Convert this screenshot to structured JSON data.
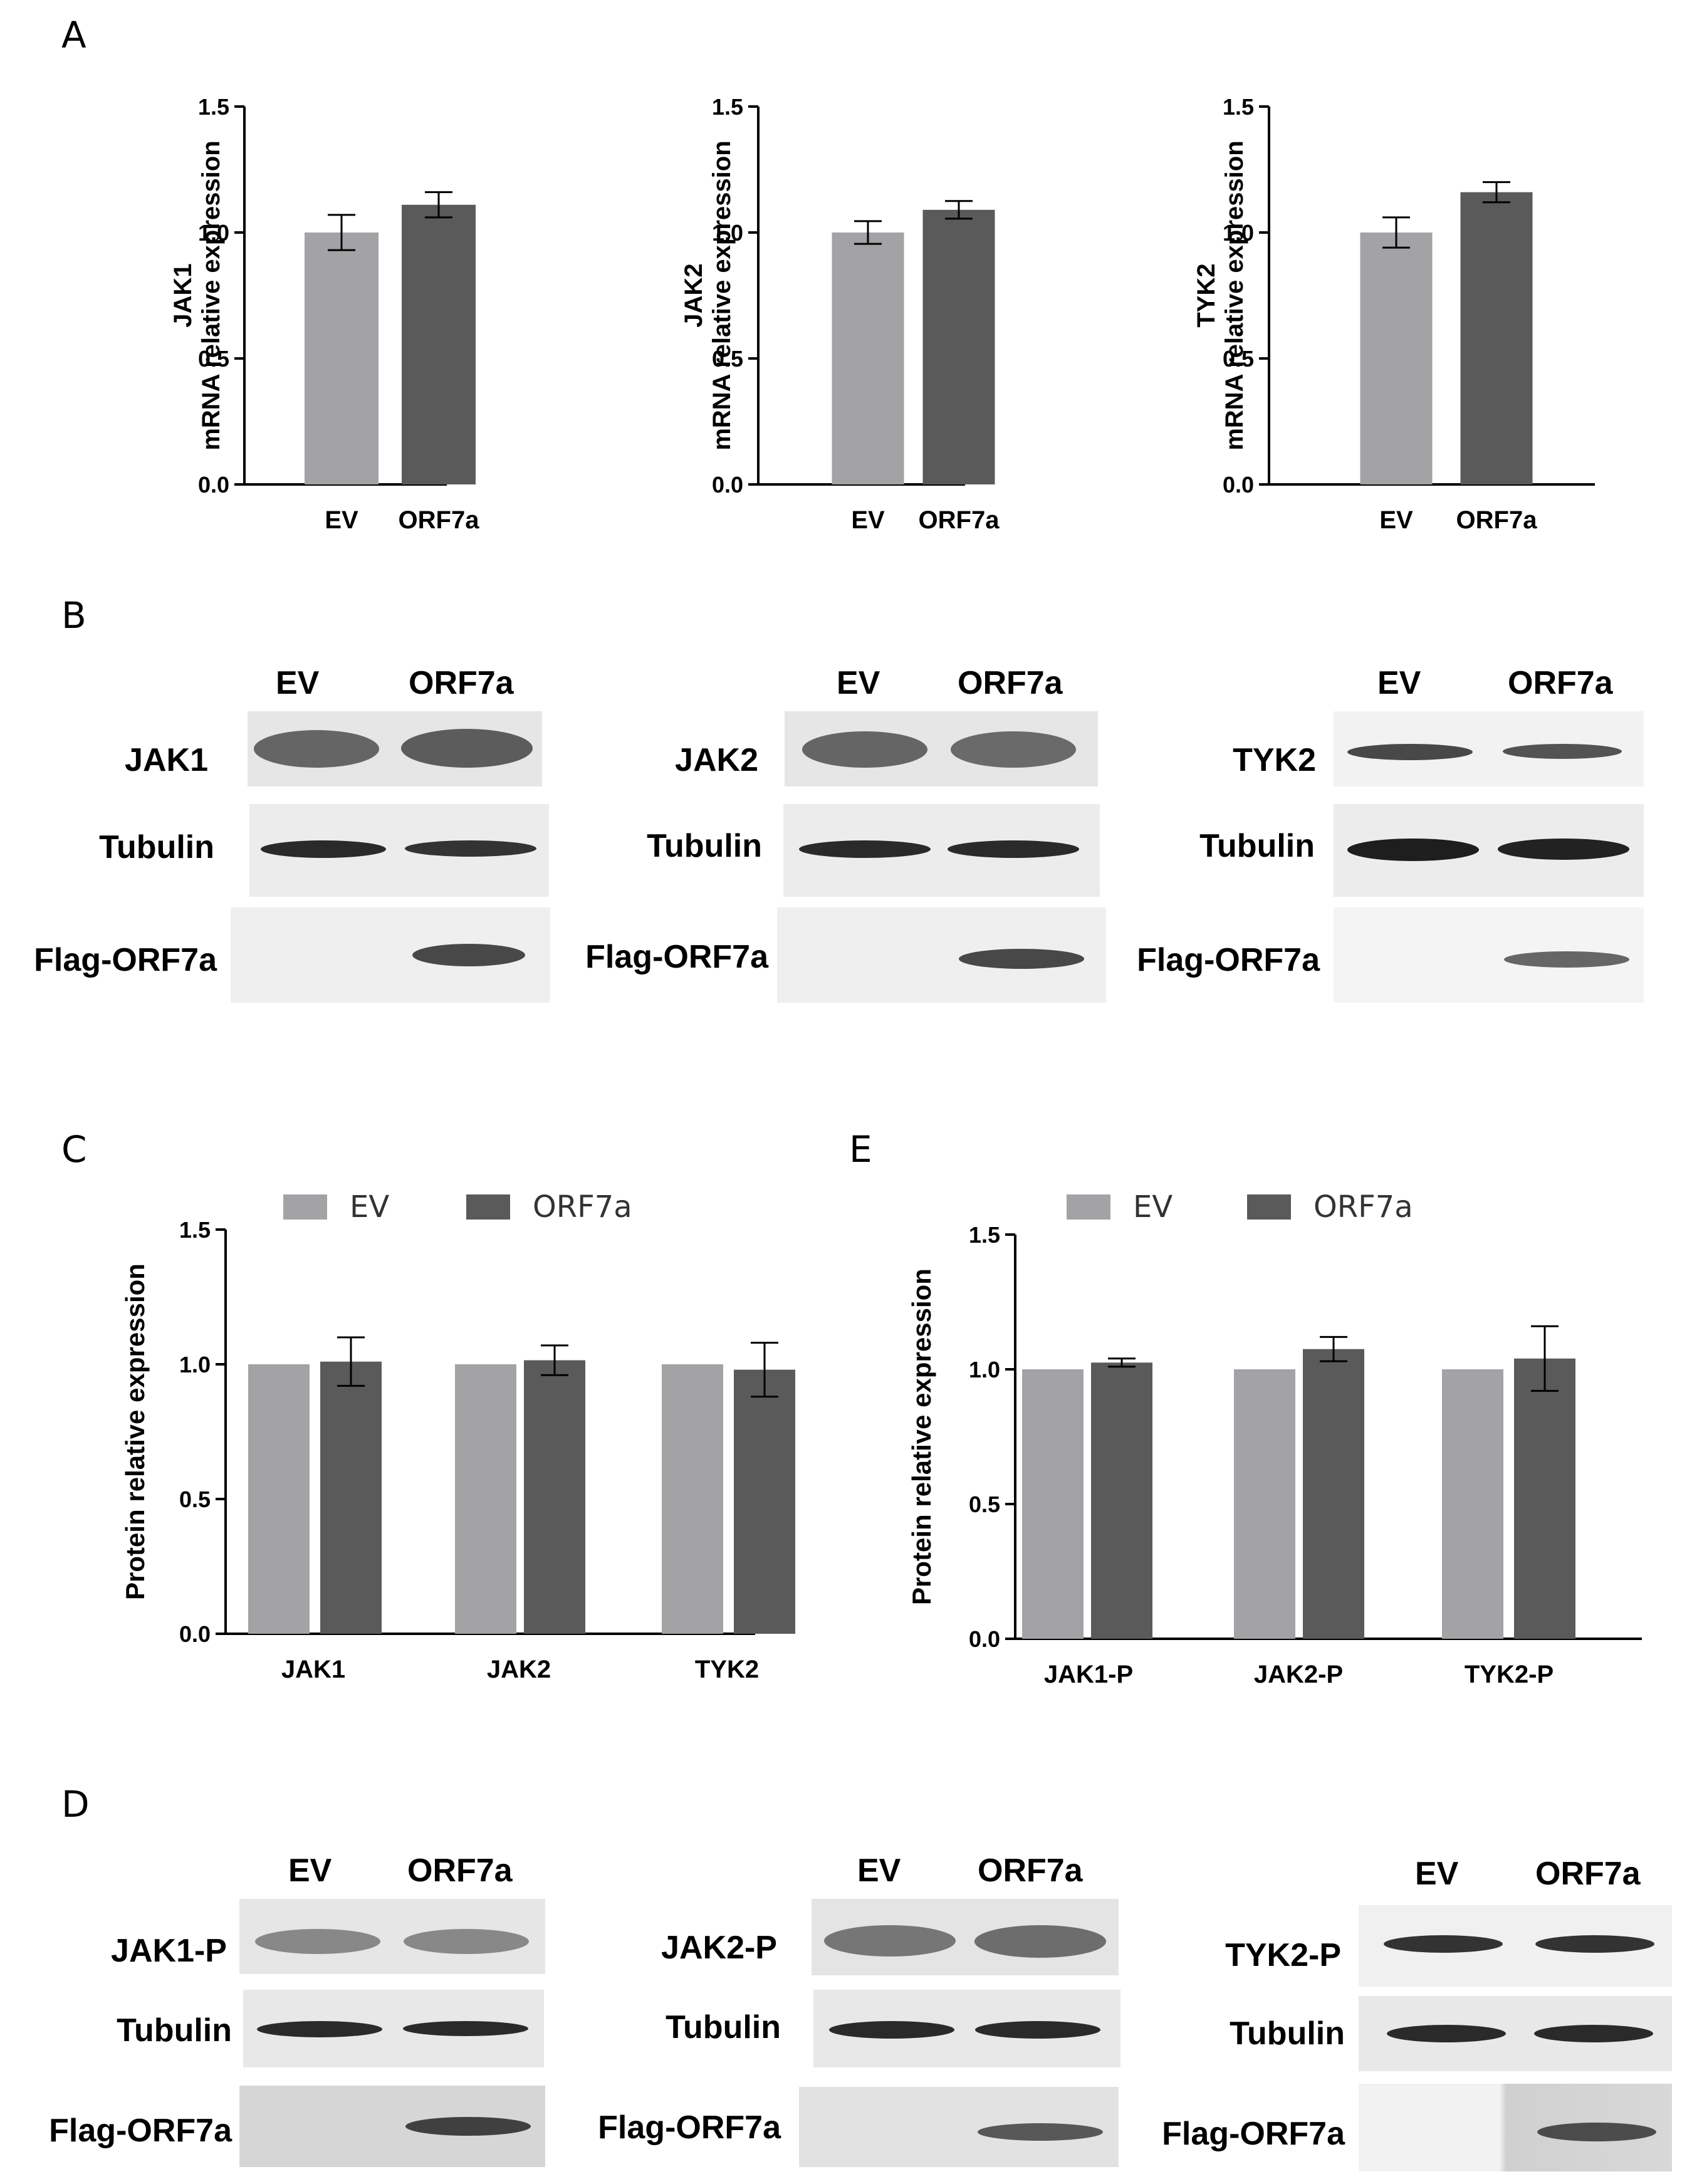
{
  "panels": {
    "A": "A",
    "B": "B",
    "C": "C",
    "D": "D",
    "E": "E"
  },
  "colors": {
    "ev": "#a3a3a6",
    "orf7a": "#5a5a5b"
  },
  "chart_data": [
    {
      "id": "A1",
      "type": "bar",
      "categories": [
        "EV",
        "ORF7a"
      ],
      "values": [
        1.0,
        1.11
      ],
      "errors": [
        0.07,
        0.05
      ],
      "ylabel_top": "JAK1",
      "ylabel": "mRNA relative expression",
      "ylim": [
        0,
        1.5
      ],
      "yticks": [
        "0.0",
        "0.5",
        "1.0",
        "1.5"
      ]
    },
    {
      "id": "A2",
      "type": "bar",
      "categories": [
        "EV",
        "ORF7a"
      ],
      "values": [
        1.0,
        1.09
      ],
      "errors": [
        0.045,
        0.035
      ],
      "ylabel_top": "JAK2",
      "ylabel": "mRNA relative expression",
      "ylim": [
        0,
        1.5
      ],
      "yticks": [
        "0.0",
        "0.5",
        "1.0",
        "1.5"
      ]
    },
    {
      "id": "A3",
      "type": "bar",
      "categories": [
        "EV",
        "ORF7a"
      ],
      "values": [
        1.0,
        1.16
      ],
      "errors": [
        0.06,
        0.04
      ],
      "ylabel_top": "TYK2",
      "ylabel": "mRNA relative expression",
      "ylim": [
        0,
        1.5
      ],
      "yticks": [
        "0.0",
        "0.5",
        "1.0",
        "1.5"
      ]
    },
    {
      "id": "C",
      "type": "bar",
      "categories": [
        "JAK1",
        "JAK2",
        "TYK2"
      ],
      "series": [
        {
          "name": "EV",
          "values": [
            1.0,
            1.0,
            1.0
          ],
          "errors": [
            0,
            0,
            0
          ]
        },
        {
          "name": "ORF7a",
          "values": [
            1.01,
            1.015,
            0.98
          ],
          "errors": [
            0.09,
            0.055,
            0.1
          ]
        }
      ],
      "ylabel": "Protein relative expression",
      "ylim": [
        0,
        1.5
      ],
      "yticks": [
        "0.0",
        "0.5",
        "1.0",
        "1.5"
      ],
      "legend": "top"
    },
    {
      "id": "E",
      "type": "bar",
      "categories": [
        "JAK1-P",
        "JAK2-P",
        "TYK2-P"
      ],
      "series": [
        {
          "name": "EV",
          "values": [
            1.0,
            1.0,
            1.0
          ],
          "errors": [
            0,
            0,
            0
          ]
        },
        {
          "name": "ORF7a",
          "values": [
            1.025,
            1.075,
            1.04
          ],
          "errors": [
            0.015,
            0.045,
            0.12
          ]
        }
      ],
      "ylabel": "Protein relative expression",
      "ylim": [
        0,
        1.5
      ],
      "yticks": [
        "0.0",
        "0.5",
        "1.0",
        "1.5"
      ],
      "legend": "top"
    }
  ],
  "blots": {
    "B": [
      {
        "header": [
          "EV",
          "ORF7a"
        ],
        "rows": [
          "JAK1",
          "Tubulin",
          "Flag-ORF7a"
        ]
      },
      {
        "header": [
          "EV",
          "ORF7a"
        ],
        "rows": [
          "JAK2",
          "Tubulin",
          "Flag-ORF7a"
        ]
      },
      {
        "header": [
          "EV",
          "ORF7a"
        ],
        "rows": [
          "TYK2",
          "Tubulin",
          "Flag-ORF7a"
        ]
      }
    ],
    "D": [
      {
        "header": [
          "EV",
          "ORF7a"
        ],
        "rows": [
          "JAK1-P",
          "Tubulin",
          "Flag-ORF7a"
        ]
      },
      {
        "header": [
          "EV",
          "ORF7a"
        ],
        "rows": [
          "JAK2-P",
          "Tubulin",
          "Flag-ORF7a"
        ]
      },
      {
        "header": [
          "EV",
          "ORF7a"
        ],
        "rows": [
          "TYK2-P",
          "Tubulin",
          "Flag-ORF7a"
        ]
      }
    ]
  }
}
